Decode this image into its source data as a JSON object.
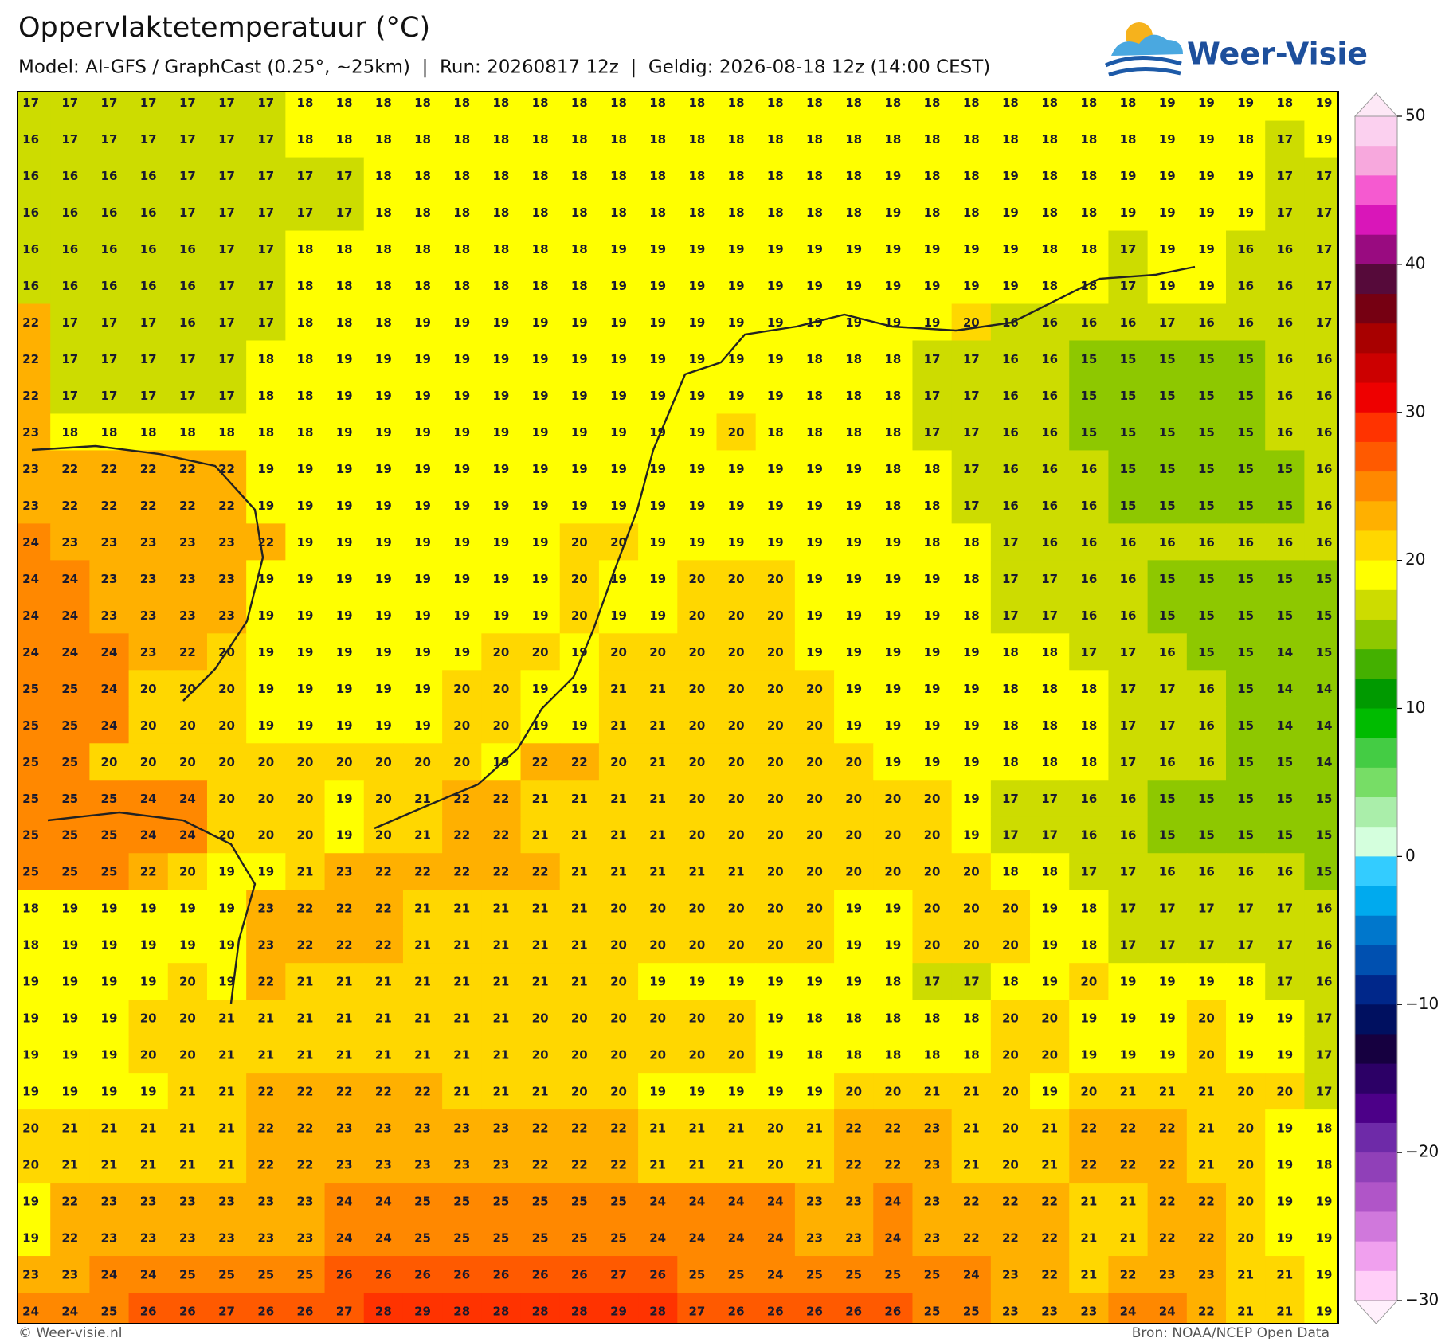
{
  "header": {
    "title": "Oppervlaktetemperatuur (°C)",
    "subtitle": "Model: AI-GFS / GraphCast (0.25°, ~25km)  |  Run: 20260817 12z  |  Geldig: 2026-08-18 12z (14:00 CEST)",
    "logo_text": "Weer-Visie"
  },
  "map": {
    "type": "grid-map",
    "values": [
      [
        17,
        17,
        17,
        17,
        17,
        17,
        17,
        18,
        18,
        18,
        18,
        18,
        18,
        18,
        18,
        18,
        18,
        18,
        18,
        18,
        18,
        18,
        18,
        18,
        18,
        18,
        18,
        18,
        18,
        19,
        19,
        19,
        18,
        19
      ],
      [
        16,
        17,
        17,
        17,
        17,
        17,
        17,
        18,
        18,
        18,
        18,
        18,
        18,
        18,
        18,
        18,
        18,
        18,
        18,
        18,
        18,
        18,
        18,
        18,
        18,
        18,
        18,
        18,
        18,
        19,
        19,
        18,
        17,
        19
      ],
      [
        16,
        16,
        16,
        16,
        17,
        17,
        17,
        17,
        17,
        18,
        18,
        18,
        18,
        18,
        18,
        18,
        18,
        18,
        18,
        18,
        18,
        18,
        19,
        18,
        18,
        19,
        18,
        18,
        19,
        19,
        19,
        19,
        17,
        17
      ],
      [
        16,
        16,
        16,
        16,
        17,
        17,
        17,
        17,
        17,
        18,
        18,
        18,
        18,
        18,
        18,
        18,
        18,
        18,
        18,
        18,
        18,
        18,
        19,
        18,
        18,
        19,
        18,
        18,
        19,
        19,
        19,
        19,
        17,
        17
      ],
      [
        16,
        16,
        16,
        16,
        16,
        17,
        17,
        18,
        18,
        18,
        18,
        18,
        18,
        18,
        18,
        19,
        19,
        19,
        19,
        19,
        19,
        19,
        19,
        19,
        19,
        19,
        18,
        18,
        17,
        19,
        19,
        16,
        16,
        17
      ],
      [
        16,
        16,
        16,
        16,
        16,
        17,
        17,
        18,
        18,
        18,
        18,
        18,
        18,
        18,
        18,
        19,
        19,
        19,
        19,
        19,
        19,
        19,
        19,
        19,
        19,
        19,
        18,
        18,
        17,
        19,
        19,
        16,
        16,
        17
      ],
      [
        22,
        17,
        17,
        17,
        16,
        17,
        17,
        18,
        18,
        18,
        19,
        19,
        19,
        19,
        19,
        19,
        19,
        19,
        19,
        19,
        19,
        19,
        19,
        19,
        20,
        16,
        16,
        16,
        16,
        17,
        16,
        16,
        16,
        17
      ],
      [
        22,
        17,
        17,
        17,
        17,
        17,
        18,
        18,
        19,
        19,
        19,
        19,
        19,
        19,
        19,
        19,
        19,
        19,
        19,
        19,
        18,
        18,
        18,
        17,
        17,
        16,
        16,
        15,
        15,
        15,
        15,
        15,
        16,
        16
      ],
      [
        22,
        17,
        17,
        17,
        17,
        17,
        18,
        18,
        19,
        19,
        19,
        19,
        19,
        19,
        19,
        19,
        19,
        19,
        19,
        19,
        18,
        18,
        18,
        17,
        17,
        16,
        16,
        15,
        15,
        15,
        15,
        15,
        16,
        16
      ],
      [
        23,
        18,
        18,
        18,
        18,
        18,
        18,
        18,
        19,
        19,
        19,
        19,
        19,
        19,
        19,
        19,
        19,
        19,
        20,
        18,
        18,
        18,
        18,
        17,
        17,
        16,
        16,
        15,
        15,
        15,
        15,
        15,
        16,
        16
      ],
      [
        23,
        22,
        22,
        22,
        22,
        22,
        19,
        19,
        19,
        19,
        19,
        19,
        19,
        19,
        19,
        19,
        19,
        19,
        19,
        19,
        19,
        19,
        18,
        18,
        17,
        16,
        16,
        16,
        15,
        15,
        15,
        15,
        15,
        16
      ],
      [
        23,
        22,
        22,
        22,
        22,
        22,
        19,
        19,
        19,
        19,
        19,
        19,
        19,
        19,
        19,
        19,
        19,
        19,
        19,
        19,
        19,
        19,
        18,
        18,
        17,
        16,
        16,
        16,
        15,
        15,
        15,
        15,
        15,
        16
      ],
      [
        24,
        23,
        23,
        23,
        23,
        23,
        22,
        19,
        19,
        19,
        19,
        19,
        19,
        19,
        20,
        20,
        19,
        19,
        19,
        19,
        19,
        19,
        19,
        18,
        18,
        17,
        16,
        16,
        16,
        16,
        16,
        16,
        16,
        16
      ],
      [
        24,
        24,
        23,
        23,
        23,
        23,
        19,
        19,
        19,
        19,
        19,
        19,
        19,
        19,
        20,
        19,
        19,
        20,
        20,
        20,
        19,
        19,
        19,
        19,
        18,
        17,
        17,
        16,
        16,
        15,
        15,
        15,
        15,
        15
      ],
      [
        24,
        24,
        23,
        23,
        23,
        23,
        19,
        19,
        19,
        19,
        19,
        19,
        19,
        19,
        20,
        19,
        19,
        20,
        20,
        20,
        19,
        19,
        19,
        19,
        18,
        17,
        17,
        16,
        16,
        15,
        15,
        15,
        15,
        15
      ],
      [
        24,
        24,
        24,
        23,
        22,
        20,
        19,
        19,
        19,
        19,
        19,
        19,
        20,
        20,
        19,
        20,
        20,
        20,
        20,
        20,
        19,
        19,
        19,
        19,
        19,
        18,
        18,
        17,
        17,
        16,
        15,
        15,
        14,
        15
      ],
      [
        25,
        25,
        24,
        20,
        20,
        20,
        19,
        19,
        19,
        19,
        19,
        20,
        20,
        19,
        19,
        21,
        21,
        20,
        20,
        20,
        20,
        19,
        19,
        19,
        19,
        18,
        18,
        18,
        17,
        17,
        16,
        15,
        14,
        14
      ],
      [
        25,
        25,
        24,
        20,
        20,
        20,
        19,
        19,
        19,
        19,
        19,
        20,
        20,
        19,
        19,
        21,
        21,
        20,
        20,
        20,
        20,
        19,
        19,
        19,
        19,
        18,
        18,
        18,
        17,
        17,
        16,
        15,
        14,
        14
      ],
      [
        25,
        25,
        20,
        20,
        20,
        20,
        20,
        20,
        20,
        20,
        20,
        20,
        19,
        22,
        22,
        20,
        21,
        20,
        20,
        20,
        20,
        20,
        19,
        19,
        19,
        18,
        18,
        18,
        17,
        16,
        16,
        15,
        15,
        14
      ],
      [
        25,
        25,
        25,
        24,
        24,
        20,
        20,
        20,
        19,
        20,
        21,
        22,
        22,
        21,
        21,
        21,
        21,
        20,
        20,
        20,
        20,
        20,
        20,
        20,
        19,
        17,
        17,
        16,
        16,
        15,
        15,
        15,
        15,
        15
      ],
      [
        25,
        25,
        25,
        24,
        24,
        20,
        20,
        20,
        19,
        20,
        21,
        22,
        22,
        21,
        21,
        21,
        21,
        20,
        20,
        20,
        20,
        20,
        20,
        20,
        19,
        17,
        17,
        16,
        16,
        15,
        15,
        15,
        15,
        15
      ],
      [
        25,
        25,
        25,
        22,
        20,
        19,
        19,
        21,
        23,
        22,
        22,
        22,
        22,
        22,
        21,
        21,
        21,
        21,
        21,
        20,
        20,
        20,
        20,
        20,
        20,
        18,
        18,
        17,
        17,
        16,
        16,
        16,
        16,
        15
      ],
      [
        18,
        19,
        19,
        19,
        19,
        19,
        23,
        22,
        22,
        22,
        21,
        21,
        21,
        21,
        21,
        20,
        20,
        20,
        20,
        20,
        20,
        19,
        19,
        20,
        20,
        20,
        19,
        18,
        17,
        17,
        17,
        17,
        17,
        16
      ],
      [
        18,
        19,
        19,
        19,
        19,
        19,
        23,
        22,
        22,
        22,
        21,
        21,
        21,
        21,
        21,
        20,
        20,
        20,
        20,
        20,
        20,
        19,
        19,
        20,
        20,
        20,
        19,
        18,
        17,
        17,
        17,
        17,
        17,
        16
      ],
      [
        19,
        19,
        19,
        19,
        20,
        19,
        22,
        21,
        21,
        21,
        21,
        21,
        21,
        21,
        21,
        20,
        19,
        19,
        19,
        19,
        19,
        19,
        18,
        17,
        17,
        18,
        19,
        20,
        19,
        19,
        19,
        18,
        17,
        16
      ],
      [
        19,
        19,
        19,
        20,
        20,
        21,
        21,
        21,
        21,
        21,
        21,
        21,
        21,
        20,
        20,
        20,
        20,
        20,
        20,
        19,
        18,
        18,
        18,
        18,
        18,
        20,
        20,
        19,
        19,
        19,
        20,
        19,
        19,
        17
      ],
      [
        19,
        19,
        19,
        20,
        20,
        21,
        21,
        21,
        21,
        21,
        21,
        21,
        21,
        20,
        20,
        20,
        20,
        20,
        20,
        19,
        18,
        18,
        18,
        18,
        18,
        20,
        20,
        19,
        19,
        19,
        20,
        19,
        19,
        17
      ],
      [
        19,
        19,
        19,
        19,
        21,
        21,
        22,
        22,
        22,
        22,
        22,
        21,
        21,
        21,
        20,
        20,
        19,
        19,
        19,
        19,
        19,
        20,
        20,
        21,
        21,
        20,
        19,
        20,
        21,
        21,
        21,
        20,
        20,
        17
      ],
      [
        20,
        21,
        21,
        21,
        21,
        21,
        22,
        22,
        23,
        23,
        23,
        23,
        23,
        22,
        22,
        22,
        21,
        21,
        21,
        20,
        21,
        22,
        22,
        23,
        21,
        20,
        21,
        22,
        22,
        22,
        21,
        20,
        19,
        18
      ],
      [
        20,
        21,
        21,
        21,
        21,
        21,
        22,
        22,
        23,
        23,
        23,
        23,
        23,
        22,
        22,
        22,
        21,
        21,
        21,
        20,
        21,
        22,
        22,
        23,
        21,
        20,
        21,
        22,
        22,
        22,
        21,
        20,
        19,
        18
      ],
      [
        19,
        22,
        23,
        23,
        23,
        23,
        23,
        23,
        24,
        24,
        25,
        25,
        25,
        25,
        25,
        25,
        24,
        24,
        24,
        24,
        23,
        23,
        24,
        23,
        22,
        22,
        22,
        21,
        21,
        22,
        22,
        20,
        19,
        19
      ],
      [
        19,
        22,
        23,
        23,
        23,
        23,
        23,
        23,
        24,
        24,
        25,
        25,
        25,
        25,
        25,
        25,
        24,
        24,
        24,
        24,
        23,
        23,
        24,
        23,
        22,
        22,
        22,
        21,
        21,
        22,
        22,
        20,
        19,
        19
      ],
      [
        23,
        23,
        24,
        24,
        25,
        25,
        25,
        25,
        26,
        26,
        26,
        26,
        26,
        26,
        26,
        27,
        26,
        25,
        25,
        24,
        25,
        25,
        25,
        25,
        24,
        23,
        22,
        21,
        22,
        23,
        23,
        21,
        21,
        19
      ],
      [
        24,
        24,
        25,
        26,
        26,
        27,
        26,
        26,
        27,
        28,
        29,
        28,
        28,
        28,
        28,
        29,
        28,
        27,
        26,
        26,
        26,
        26,
        26,
        25,
        25,
        23,
        23,
        23,
        24,
        24,
        22,
        21,
        21,
        19
      ]
    ],
    "colorbar": {
      "lim": [
        -30,
        50
      ],
      "ticks": [
        50,
        40,
        30,
        20,
        10,
        0,
        {
          "value": -10,
          "label": "−10"
        },
        {
          "value": -20,
          "label": "−20"
        },
        {
          "value": -30,
          "label": "−30"
        }
      ],
      "colors": [
        "#fbd0ef",
        "#f7a8dd",
        "#f55ad0",
        "#d916b9",
        "#990b80",
        "#560a3a",
        "#760012",
        "#a80000",
        "#cc0000",
        "#ee0000",
        "#ff3300",
        "#ff5a00",
        "#ff8800",
        "#ffb000",
        "#ffd700",
        "#ffff00",
        "#cddc00",
        "#8ec800",
        "#44b000",
        "#009a00",
        "#00bb00",
        "#44cc44",
        "#77dd66",
        "#aaeeaa",
        "#d4ffdd",
        "#33ccff",
        "#00aaee",
        "#0077cc",
        "#0050b0",
        "#00278a",
        "#001060",
        "#160040",
        "#2c0066",
        "#4c0088",
        "#6e2aa8",
        "#9040b8",
        "#b055c8",
        "#d078dc",
        "#f0a0ee",
        "#ffcff8"
      ],
      "over_color": "#fde8f6",
      "under_color": "#fff0fc"
    }
  },
  "footer": {
    "credit": "© Weer-visie.nl",
    "source": "Bron: NOAA/NCEP Open Data"
  }
}
